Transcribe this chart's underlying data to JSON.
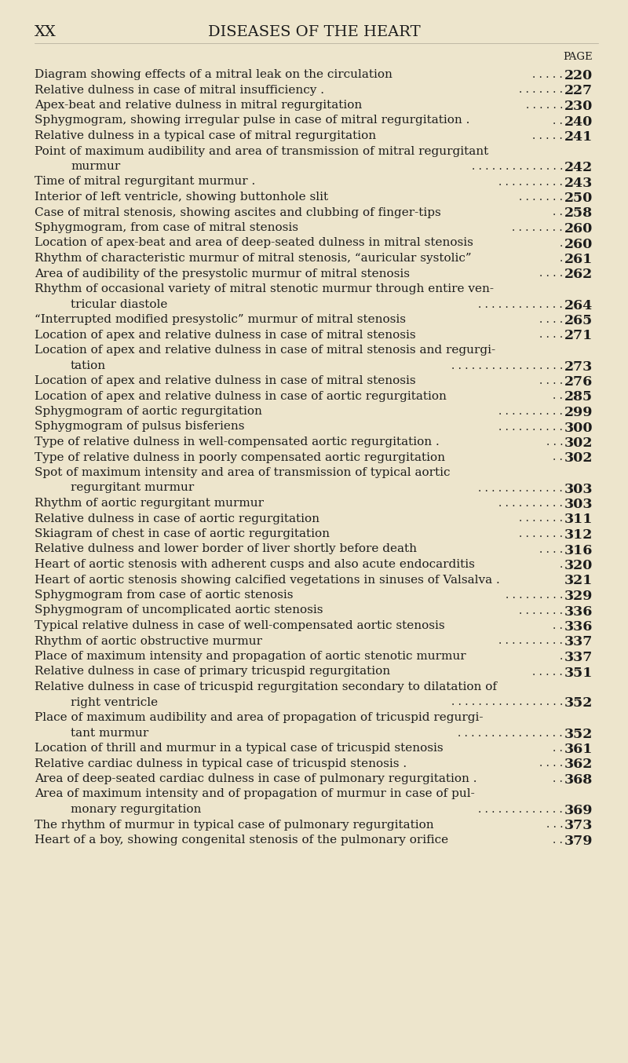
{
  "bg_color": "#ede5cc",
  "header_left": "XX",
  "header_center": "DISEASES OF THE HEART",
  "page_label": "PAGE",
  "entries": [
    {
      "text": "Diagram showing effects of a mitral leak on the circulation",
      "dots": ". . . . .",
      "indent": false,
      "page": "220"
    },
    {
      "text": "Relative dulness in case of mitral insufficiency .",
      "dots": ". . . . . . .",
      "indent": false,
      "page": "227"
    },
    {
      "text": "Apex-beat and relative dulness in mitral regurgitation",
      "dots": ". . . . . .",
      "indent": false,
      "page": "230"
    },
    {
      "text": "Sphygmogram, showing irregular pulse in case of mitral regurgitation .",
      "dots": ". .",
      "indent": false,
      "page": "240"
    },
    {
      "text": "Relative dulness in a typical case of mitral regurgitation",
      "dots": ". . . . .",
      "indent": false,
      "page": "241"
    },
    {
      "text": "Point of maximum audibility and area of transmission of mitral regurgitant",
      "dots": "",
      "indent": false,
      "page": null
    },
    {
      "text": "murmur",
      "dots": ". . . . . . . . . . . . . .",
      "indent": true,
      "page": "242"
    },
    {
      "text": "Time of mitral regurgitant murmur .",
      "dots": ". . . . . . . . . .",
      "indent": false,
      "page": "243"
    },
    {
      "text": "Interior of left ventricle, showing buttonhole slit",
      "dots": ". . . . . . .",
      "indent": false,
      "page": "250"
    },
    {
      "text": "Case of mitral stenosis, showing ascites and clubbing of finger-tips",
      "dots": ". .",
      "indent": false,
      "page": "258"
    },
    {
      "text": "Sphygmogram, from case of mitral stenosis",
      "dots": ". . . . . . . .",
      "indent": false,
      "page": "260"
    },
    {
      "text": "Location of apex-beat and area of deep-seated dulness in mitral stenosis",
      "dots": ".",
      "indent": false,
      "page": "260"
    },
    {
      "text": "Rhythm of characteristic murmur of mitral stenosis, “auricular systolic”",
      "dots": ".",
      "indent": false,
      "page": "261"
    },
    {
      "text": "Area of audibility of the presystolic murmur of mitral stenosis",
      "dots": ". . . .",
      "indent": false,
      "page": "262"
    },
    {
      "text": "Rhythm of occasional variety of mitral stenotic murmur through entire ven-",
      "dots": "",
      "indent": false,
      "page": null
    },
    {
      "text": "tricular diastole",
      "dots": ". . . . . . . . . . . . .",
      "indent": true,
      "page": "264"
    },
    {
      "text": "“Interrupted modified presystolic” murmur of mitral stenosis",
      "dots": ". . . .",
      "indent": false,
      "page": "265"
    },
    {
      "text": "Location of apex and relative dulness in case of mitral stenosis",
      "dots": ". . . .",
      "indent": false,
      "page": "271"
    },
    {
      "text": "Location of apex and relative dulness in case of mitral stenosis and regurgi-",
      "dots": "",
      "indent": false,
      "page": null
    },
    {
      "text": "tation",
      "dots": ". . . . . . . . . . . . . . . . .",
      "indent": true,
      "page": "273"
    },
    {
      "text": "Location of apex and relative dulness in case of mitral stenosis",
      "dots": ". . . .",
      "indent": false,
      "page": "276"
    },
    {
      "text": "Location of apex and relative dulness in case of aortic regurgitation",
      "dots": ". .",
      "indent": false,
      "page": "285"
    },
    {
      "text": "Sphygmogram of aortic regurgitation",
      "dots": ". . . . . . . . . .",
      "indent": false,
      "page": "299"
    },
    {
      "text": "Sphygmogram of pulsus bisferiens",
      "dots": ". . . . . . . . . .",
      "indent": false,
      "page": "300"
    },
    {
      "text": "Type of relative dulness in well-compensated aortic regurgitation .",
      "dots": ". . .",
      "indent": false,
      "page": "302"
    },
    {
      "text": "Type of relative dulness in poorly compensated aortic regurgitation",
      "dots": ". .",
      "indent": false,
      "page": "302"
    },
    {
      "text": "Spot of maximum intensity and area of transmission of typical aortic",
      "dots": "",
      "indent": false,
      "page": null
    },
    {
      "text": "regurgitant murmur",
      "dots": ". . . . . . . . . . . . .",
      "indent": true,
      "page": "303"
    },
    {
      "text": "Rhythm of aortic regurgitant murmur",
      "dots": ". . . . . . . . . .",
      "indent": false,
      "page": "303"
    },
    {
      "text": "Relative dulness in case of aortic regurgitation",
      "dots": ". . . . . . .",
      "indent": false,
      "page": "311"
    },
    {
      "text": "Skiagram of chest in case of aortic regurgitation",
      "dots": ". . . . . . .",
      "indent": false,
      "page": "312"
    },
    {
      "text": "Relative dulness and lower border of liver shortly before death",
      "dots": ". . . .",
      "indent": false,
      "page": "316"
    },
    {
      "text": "Heart of aortic stenosis with adherent cusps and also acute endocarditis",
      "dots": ".",
      "indent": false,
      "page": "320"
    },
    {
      "text": "Heart of aortic stenosis showing calcified vegetations in sinuses of Valsalva .",
      "dots": "",
      "indent": false,
      "page": "321"
    },
    {
      "text": "Sphygmogram from case of aortic stenosis",
      "dots": ". . . . . . . . .",
      "indent": false,
      "page": "329"
    },
    {
      "text": "Sphygmogram of uncomplicated aortic stenosis",
      "dots": ". . . . . . .",
      "indent": false,
      "page": "336"
    },
    {
      "text": "Typical relative dulness in case of well-compensated aortic stenosis",
      "dots": ". .",
      "indent": false,
      "page": "336"
    },
    {
      "text": "Rhythm of aortic obstructive murmur",
      "dots": ". . . . . . . . . .",
      "indent": false,
      "page": "337"
    },
    {
      "text": "Place of maximum intensity and propagation of aortic stenotic murmur",
      "dots": ".",
      "indent": false,
      "page": "337"
    },
    {
      "text": "Relative dulness in case of primary tricuspid regurgitation",
      "dots": ". . . . .",
      "indent": false,
      "page": "351"
    },
    {
      "text": "Relative dulness in case of tricuspid regurgitation secondary to dilatation of",
      "dots": "",
      "indent": false,
      "page": null
    },
    {
      "text": "right ventricle",
      "dots": ". . . . . . . . . . . . . . . . .",
      "indent": true,
      "page": "352"
    },
    {
      "text": "Place of maximum audibility and area of propagation of tricuspid regurgi-",
      "dots": "",
      "indent": false,
      "page": null
    },
    {
      "text": "tant murmur",
      "dots": ". . . . . . . . . . . . . . . .",
      "indent": true,
      "page": "352"
    },
    {
      "text": "Location of thrill and murmur in a typical case of tricuspid stenosis",
      "dots": ". .",
      "indent": false,
      "page": "361"
    },
    {
      "text": "Relative cardiac dulness in typical case of tricuspid stenosis .",
      "dots": ". . . .",
      "indent": false,
      "page": "362"
    },
    {
      "text": "Area of deep-seated cardiac dulness in case of pulmonary regurgitation .",
      "dots": ". .",
      "indent": false,
      "page": "368"
    },
    {
      "text": "Area of maximum intensity and of propagation of murmur in case of pul-",
      "dots": "",
      "indent": false,
      "page": null
    },
    {
      "text": "monary regurgitation",
      "dots": ". . . . . . . . . . . . .",
      "indent": true,
      "page": "369"
    },
    {
      "text": "The rhythm of murmur in typical case of pulmonary regurgitation",
      "dots": ". . .",
      "indent": false,
      "page": "373"
    },
    {
      "text": "Heart of a boy, showing congenital stenosis of the pulmonary orifice",
      "dots": ". .",
      "indent": false,
      "page": "379"
    }
  ],
  "text_color": "#1c1c1c",
  "header_fontsize": 14,
  "entry_fontsize": 11.0,
  "page_fontsize": 9.5,
  "page_num_fontsize": 12.5
}
